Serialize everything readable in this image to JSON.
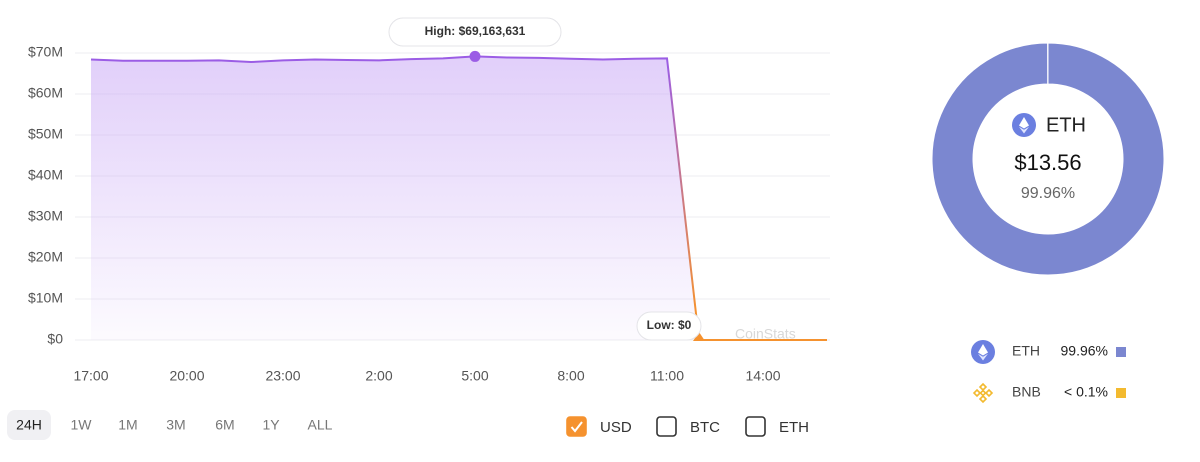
{
  "chart_data": [
    {
      "type": "line",
      "categories": [
        "17:00",
        null,
        null,
        "20:00",
        null,
        null,
        "23:00",
        null,
        null,
        "2:00",
        null,
        null,
        "5:00",
        null,
        null,
        "8:00",
        null,
        null,
        "11:00",
        null,
        null,
        "14:00",
        null,
        null
      ],
      "values": [
        68400000,
        68100000,
        68100000,
        68100000,
        68200000,
        67800000,
        68200000,
        68400000,
        68300000,
        68200000,
        68500000,
        68700000,
        69163631,
        68900000,
        68800000,
        68600000,
        68400000,
        68600000,
        68700000,
        0,
        0,
        0,
        0,
        0
      ],
      "color": "#9b5de5",
      "low_color": "#f5922f",
      "ylim": [
        0,
        70000000
      ],
      "yticks": [
        {
          "value": 0,
          "label": "$0"
        },
        {
          "value": 10000000,
          "label": "$10M"
        },
        {
          "value": 20000000,
          "label": "$20M"
        },
        {
          "value": 30000000,
          "label": "$30M"
        },
        {
          "value": 40000000,
          "label": "$40M"
        },
        {
          "value": 50000000,
          "label": "$50M"
        },
        {
          "value": 60000000,
          "label": "$60M"
        },
        {
          "value": 70000000,
          "label": "$70M"
        }
      ],
      "grid": true,
      "annotations": [
        {
          "text": "High: $69,163,631",
          "index": 12
        },
        {
          "text": "Low: $0",
          "index": 19
        }
      ],
      "watermark": "CoinStats"
    },
    {
      "type": "donut",
      "categories": [
        "ETH",
        "BNB"
      ],
      "values": [
        99.96,
        0.04
      ],
      "value_labels": [
        "99.96%",
        "< 0.1%"
      ],
      "colors": [
        "#7b87d0",
        "#f3ba2f"
      ],
      "center_label": "ETH",
      "center_value": "$13.56"
    }
  ],
  "timeframes": [
    "24H",
    "1W",
    "1M",
    "3M",
    "6M",
    "1Y",
    "ALL"
  ],
  "active_timeframe": 0,
  "currencies": [
    {
      "label": "USD",
      "checked": true
    },
    {
      "label": "BTC",
      "checked": false
    },
    {
      "label": "ETH",
      "checked": false
    }
  ]
}
